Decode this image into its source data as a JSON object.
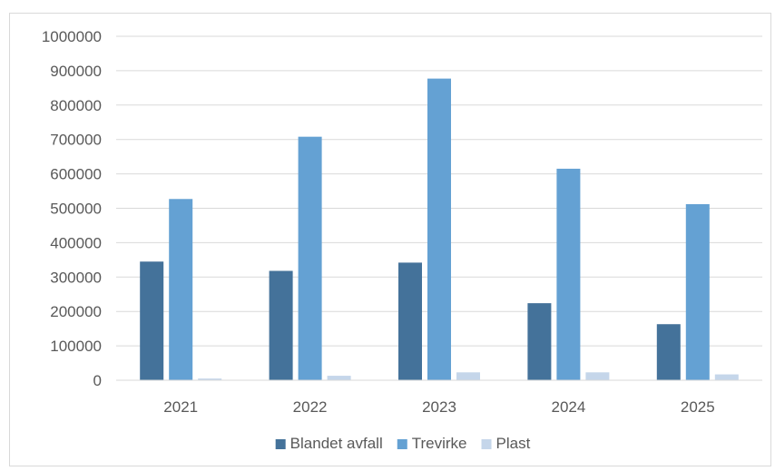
{
  "chart_data": {
    "type": "bar",
    "title": "",
    "xlabel": "",
    "ylabel": "",
    "categories": [
      "2021",
      "2022",
      "2023",
      "2024",
      "2025"
    ],
    "series": [
      {
        "name": "Blandet avfall",
        "color": "#44729a",
        "values": [
          345000,
          318000,
          342000,
          224000,
          163000
        ]
      },
      {
        "name": "Trevirke",
        "color": "#64a1d3",
        "values": [
          527000,
          708000,
          877000,
          615000,
          512000
        ]
      },
      {
        "name": "Plast",
        "color": "#c5d6ea",
        "values": [
          5000,
          13000,
          23000,
          23000,
          17000
        ]
      }
    ],
    "ylim": [
      0,
      1000000
    ],
    "yticks": [
      "0",
      "100000",
      "200000",
      "300000",
      "400000",
      "500000",
      "600000",
      "700000",
      "800000",
      "900000",
      "1000000"
    ],
    "grid": true,
    "legend_position": "bottom"
  }
}
